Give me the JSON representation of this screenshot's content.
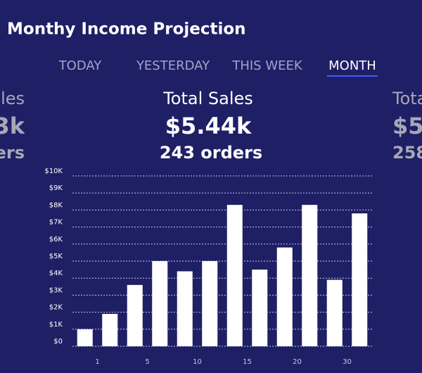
{
  "header": {
    "title": "Monthy Income Projection"
  },
  "tabs": [
    {
      "label": "TODAY",
      "active": false
    },
    {
      "label": "YESTERDAY",
      "active": false
    },
    {
      "label": "THIS WEEK",
      "active": false
    },
    {
      "label": "MONTH",
      "active": true
    }
  ],
  "cards": [
    {
      "title": "les",
      "amount": "3k",
      "orders": "ders"
    },
    {
      "title": "Total Sales",
      "amount": "$5.44k",
      "orders": "243 orders"
    },
    {
      "title": "Tota",
      "amount": "$5",
      "orders": "258"
    }
  ],
  "chart_data": {
    "type": "bar",
    "categories": [
      null,
      null,
      null,
      null,
      null,
      null,
      null,
      null,
      null,
      null,
      null,
      null
    ],
    "values": [
      1000,
      1900,
      3600,
      5000,
      4400,
      5000,
      8300,
      4500,
      5800,
      8300,
      3900,
      7800
    ],
    "color": "#ffffff",
    "xticks": [
      "1",
      "5",
      "10",
      "15",
      "20",
      "30"
    ],
    "ylim": [
      0,
      10000
    ],
    "yticks": [
      {
        "value": 0,
        "label": "$0"
      },
      {
        "value": 1000,
        "label": "$1K"
      },
      {
        "value": 2000,
        "label": "$2K"
      },
      {
        "value": 3000,
        "label": "$3K"
      },
      {
        "value": 4000,
        "label": "$4K"
      },
      {
        "value": 5000,
        "label": "$5K"
      },
      {
        "value": 6000,
        "label": "$6K"
      },
      {
        "value": 7000,
        "label": "$7K"
      },
      {
        "value": 8000,
        "label": "$8K"
      },
      {
        "value": 9000,
        "label": "$9K"
      },
      {
        "value": 10000,
        "label": "$10K"
      }
    ],
    "grid": true
  }
}
